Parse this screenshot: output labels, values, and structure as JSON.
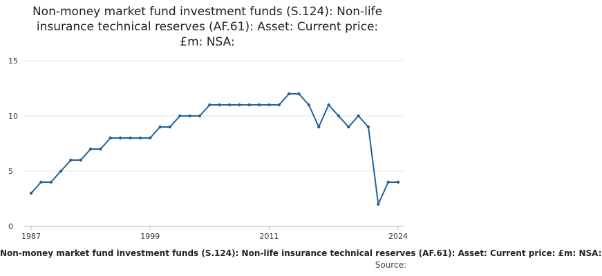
{
  "chart_data": {
    "type": "line",
    "title": "Non-money market fund investment funds (S.124): Non-life insurance technical reserves (AF.61): Asset: Current price: £m: NSA:",
    "x": [
      1987,
      1988,
      1989,
      1990,
      1991,
      1992,
      1993,
      1994,
      1995,
      1996,
      1997,
      1998,
      1999,
      2000,
      2001,
      2002,
      2003,
      2004,
      2005,
      2006,
      2007,
      2008,
      2009,
      2010,
      2011,
      2012,
      2013,
      2014,
      2015,
      2016,
      2017,
      2018,
      2019,
      2020,
      2021,
      2022,
      2023,
      2024
    ],
    "values": [
      3,
      4,
      4,
      5,
      6,
      6,
      7,
      7,
      8,
      8,
      8,
      8,
      8,
      9,
      9,
      10,
      10,
      10,
      11,
      11,
      11,
      11,
      11,
      11,
      11,
      11,
      12,
      12,
      11,
      9,
      11,
      10,
      9,
      10,
      9,
      2,
      4,
      4
    ],
    "x_ticks": [
      "1987",
      "1999",
      "2011",
      "2024"
    ],
    "y_ticks": [
      "0",
      "5",
      "10",
      "15"
    ],
    "ylim": [
      0,
      15
    ],
    "xlim": [
      1987,
      2024
    ],
    "grid": true,
    "line_color": "#206095",
    "footer_text": "Non-money market fund investment funds (S.124): Non-life insurance technical reserves (AF.61): Asset: Current price: £m: NSA:",
    "source_label": "Source:"
  }
}
